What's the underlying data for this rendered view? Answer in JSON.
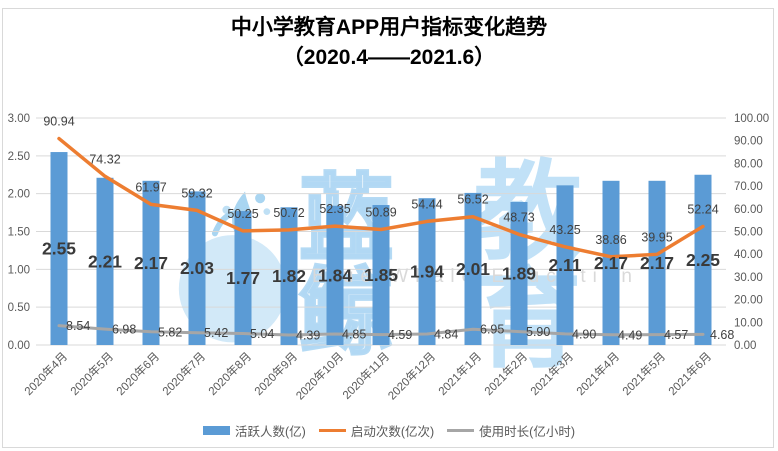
{
  "title": {
    "line1": "中小学教育APP用户指标变化趋势",
    "line2": "（2020.4——2021.6）"
  },
  "watermark": {
    "cn_outline": "蓝鲸",
    "cn_solid": "教育",
    "en": "Blue Whale Education"
  },
  "colors": {
    "bar": "#5b9bd5",
    "line_orange": "#ed7d31",
    "line_gray": "#a6a6a6",
    "grid": "#d9d9d9",
    "axis_text": "#595959",
    "data_label": "#404040",
    "bar_label": "#3a3a3a",
    "watermark_blue": "#b9ddf5",
    "frame_border": "#d9d9d9"
  },
  "chart_data": {
    "type": "bar+line combo",
    "title": "中小学教育APP用户指标变化趋势（2020.4——2021.6）",
    "categories": [
      "2020年4月",
      "2020年5月",
      "2020年6月",
      "2020年7月",
      "2020年8月",
      "2020年9月",
      "2020年10月",
      "2020年11月",
      "2020年12月",
      "2021年1月",
      "2021年2月",
      "2021年3月",
      "2021年4月",
      "2021年5月",
      "2021年6月"
    ],
    "series": [
      {
        "name": "活跃人数(亿)",
        "type": "bar",
        "axis": "left",
        "color": "#5b9bd5",
        "values": [
          2.55,
          2.21,
          2.17,
          2.03,
          1.77,
          1.82,
          1.84,
          1.85,
          1.94,
          2.01,
          1.89,
          2.11,
          2.17,
          2.17,
          2.25
        ]
      },
      {
        "name": "启动次数(亿次)",
        "type": "line",
        "axis": "right",
        "color": "#ed7d31",
        "values": [
          90.94,
          74.32,
          61.97,
          59.32,
          50.25,
          50.72,
          52.35,
          50.89,
          54.44,
          56.52,
          48.73,
          43.25,
          38.86,
          39.95,
          52.24
        ]
      },
      {
        "name": "使用时长(亿小时)",
        "type": "line",
        "axis": "right",
        "color": "#a6a6a6",
        "values": [
          8.54,
          6.98,
          5.82,
          5.42,
          5.04,
          4.39,
          4.85,
          4.59,
          4.84,
          6.95,
          5.9,
          4.9,
          4.49,
          4.57,
          4.68
        ]
      }
    ],
    "left_axis": {
      "min": 0,
      "max": 3,
      "step": 0.5,
      "tick_format": "0.00"
    },
    "right_axis": {
      "min": 0,
      "max": 100,
      "step": 10,
      "tick_format": "0.00"
    },
    "grid": true,
    "legend_position": "bottom",
    "x_labels_rotation_deg": -45
  }
}
